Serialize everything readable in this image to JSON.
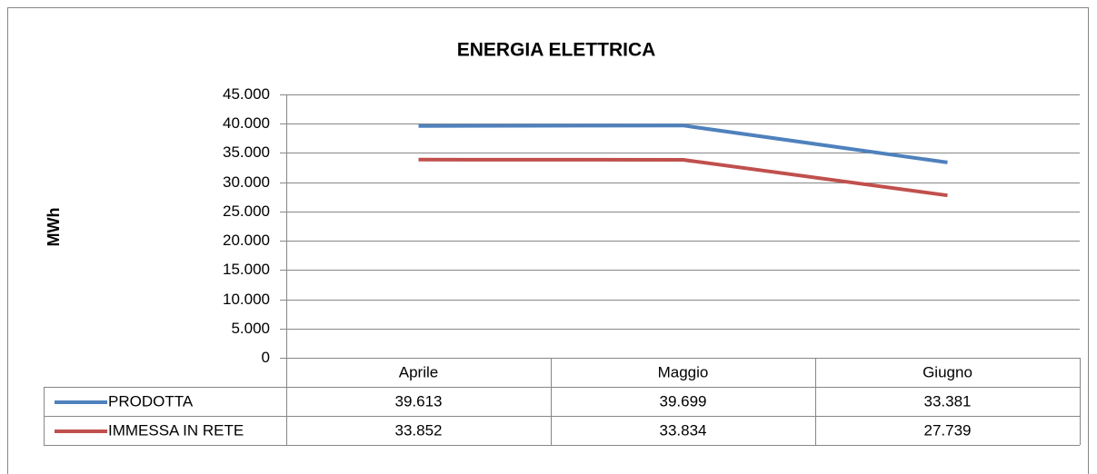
{
  "chart_data": {
    "type": "line",
    "title": "ENERGIA ELETTRICA",
    "y_label": "MWh",
    "categories": [
      "Aprile",
      "Maggio",
      "Giugno"
    ],
    "series": [
      {
        "name": "PRODOTTA",
        "color": "#4f81bd",
        "values": [
          39613,
          39699,
          33381
        ],
        "value_labels": [
          "39.613",
          "39.699",
          "33.381"
        ]
      },
      {
        "name": "IMMESSA IN RETE",
        "color": "#c0504d",
        "values": [
          33852,
          33834,
          27739
        ],
        "value_labels": [
          "33.852",
          "33.834",
          "27.739"
        ]
      }
    ],
    "ylim": [
      0,
      45000
    ],
    "yticks": [
      0,
      {
        "value": 5000,
        "label": "5.000"
      },
      {
        "value": 10000,
        "label": "10.000"
      },
      {
        "value": 15000,
        "label": "15.000"
      },
      {
        "value": 20000,
        "label": "20.000"
      },
      {
        "value": 25000,
        "label": "25.000"
      },
      {
        "value": 30000,
        "label": "30.000"
      },
      {
        "value": 35000,
        "label": "35.000"
      },
      {
        "value": 40000,
        "label": "40.000"
      },
      {
        "value": 45000,
        "label": "45.000"
      }
    ],
    "grid": true,
    "data_table": true
  }
}
